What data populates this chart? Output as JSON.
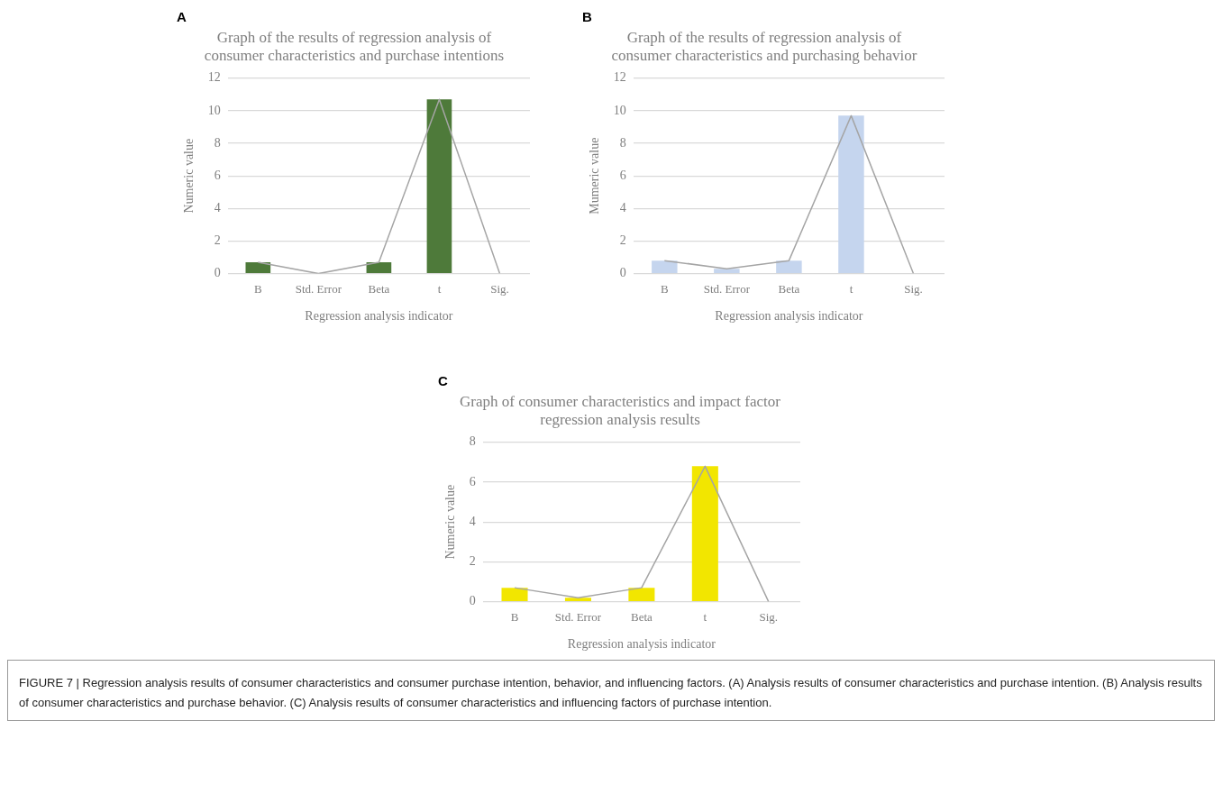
{
  "chart_data": [
    {
      "type": "bar",
      "title": "Graph of the results of regression analysis of consumer characteristics and purchase intentions",
      "xlabel": "Regression analysis indicator",
      "ylabel": "Numeric value",
      "categories": [
        "B",
        "Std. Error",
        "Beta",
        "t",
        "Sig."
      ],
      "series": [
        {
          "color": "#4e7a3a",
          "values": [
            0.7,
            0,
            0.7,
            10.7,
            0
          ]
        },
        {
          "type": "line",
          "color": "#a5a5a5",
          "values": [
            0.7,
            0,
            0.7,
            10.7,
            0
          ]
        }
      ],
      "marker": "none",
      "ylim": [
        0,
        12
      ],
      "yticks": [
        0,
        2,
        4,
        6,
        8,
        10,
        12
      ],
      "grid": "y",
      "legend": false,
      "annotations": [
        "A"
      ]
    },
    {
      "type": "bar",
      "title": "Graph of the results of regression analysis of consumer characteristics and purchasing behavior",
      "xlabel": "Regression analysis indicator",
      "ylabel": "Mumeric value",
      "categories": [
        "B",
        "Std. Error",
        "Beta",
        "t",
        "Sig."
      ],
      "series": [
        {
          "color": "#c5d5ee",
          "values": [
            0.8,
            0.3,
            0.8,
            9.7,
            0
          ]
        },
        {
          "type": "line",
          "color": "#a5a5a5",
          "values": [
            0.8,
            0.3,
            0.8,
            9.7,
            0
          ]
        }
      ],
      "marker": "none",
      "ylim": [
        0,
        12
      ],
      "yticks": [
        0,
        2,
        4,
        6,
        8,
        10,
        12
      ],
      "grid": "y",
      "legend": false,
      "annotations": [
        "B"
      ]
    },
    {
      "type": "bar",
      "title": "Graph of consumer characteristics and impact factor regression analysis results",
      "xlabel": "Regression analysis indicator",
      "ylabel": "Numeric value",
      "categories": [
        "B",
        "Std. Error",
        "Beta",
        "t",
        "Sig."
      ],
      "series": [
        {
          "color": "#f2e600",
          "values": [
            0.7,
            0.2,
            0.7,
            6.8,
            0
          ]
        },
        {
          "type": "line",
          "color": "#a5a5a5",
          "values": [
            0.7,
            0.2,
            0.7,
            6.8,
            0
          ]
        }
      ],
      "marker": "none",
      "ylim": [
        0,
        8
      ],
      "yticks": [
        0,
        2,
        4,
        6,
        8
      ],
      "grid": "y",
      "legend": false,
      "annotations": [
        "C",
        "FIGURE 7 | Regression analysis results of consumer characteristics and consumer purchase intention, behavior, and influencing factors. (A) Analysis results of consumer characteristics and purchase intention. (B) Analysis results of consumer characteristics and purchase behavior. (C) Analysis results of consumer characteristics and influencing factors of purchase intention."
      ]
    }
  ]
}
